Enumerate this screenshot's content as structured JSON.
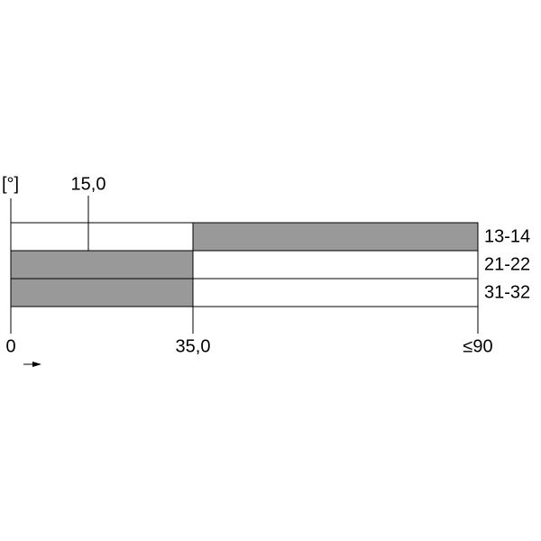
{
  "unit": "[°]",
  "markers": {
    "top": "15,0",
    "bottom": [
      "0",
      "35,0",
      "≤90"
    ]
  },
  "contacts": [
    "13-14",
    "21-22",
    "31-32"
  ]
}
